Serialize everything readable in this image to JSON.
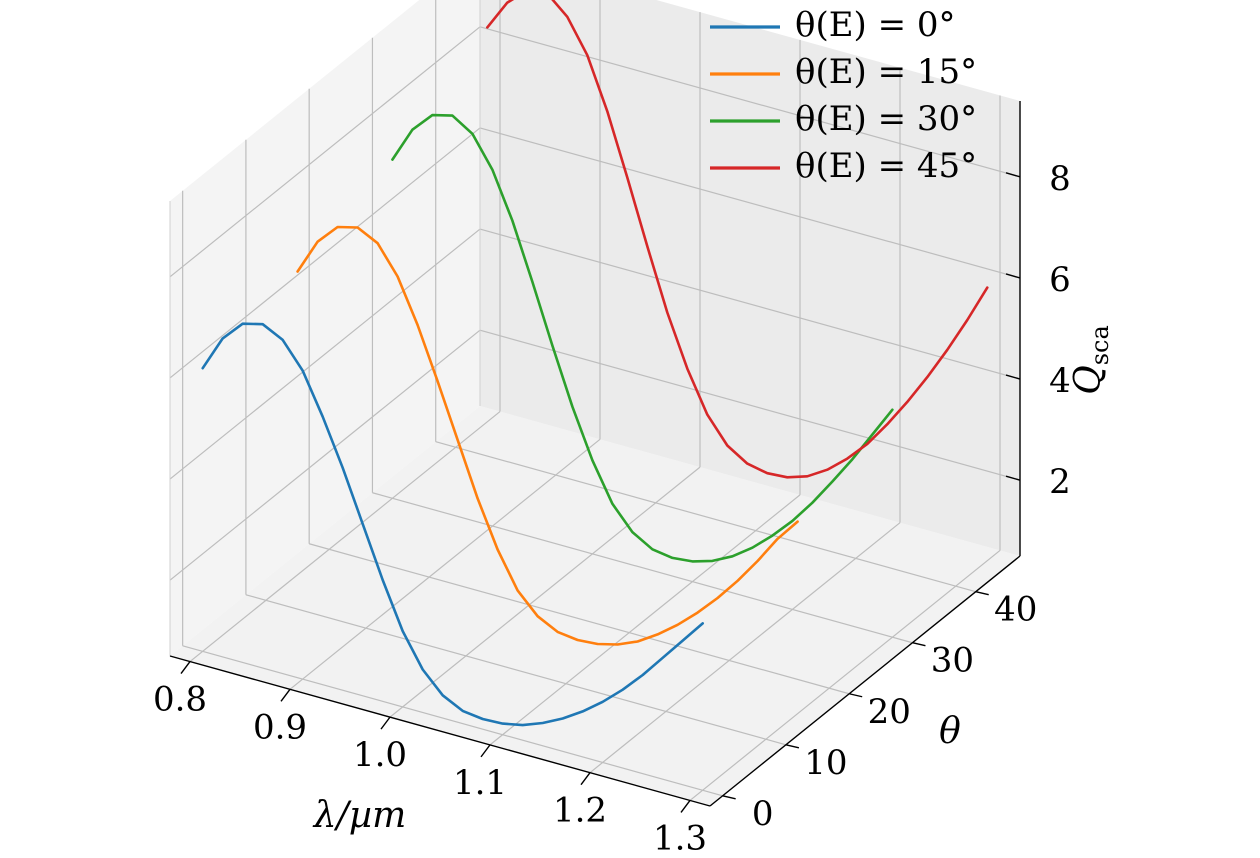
{
  "chart_data": {
    "type": "line",
    "projection": "3d",
    "x_axis": {
      "label": "λ/µm",
      "ticks": [
        "0.8",
        "0.9",
        "1.0",
        "1.1",
        "1.2",
        "1.3"
      ],
      "range": [
        0.78,
        1.32
      ]
    },
    "y_axis": {
      "label": "θ",
      "ticks": [
        "0",
        "10",
        "20",
        "30",
        "40"
      ],
      "range": [
        -2,
        47
      ]
    },
    "z_axis": {
      "label": "Q_sca",
      "ticks": [
        "2",
        "4",
        "6",
        "8"
      ],
      "range": [
        0.5,
        9.5
      ]
    },
    "grid": true,
    "legend_position": "top-right",
    "series": [
      {
        "name": "θ(E) = 0°",
        "theta": 0,
        "color": "#1f77b4",
        "x": [
          0.8,
          0.82,
          0.84,
          0.86,
          0.88,
          0.9,
          0.92,
          0.94,
          0.96,
          0.98,
          1.0,
          1.02,
          1.04,
          1.06,
          1.08,
          1.1,
          1.12,
          1.14,
          1.16,
          1.18,
          1.2,
          1.22,
          1.24,
          1.26,
          1.28,
          1.3
        ],
        "z": [
          6.1,
          6.8,
          7.2,
          7.3,
          7.1,
          6.6,
          5.8,
          4.9,
          3.9,
          2.9,
          2.0,
          1.35,
          0.95,
          0.75,
          0.7,
          0.72,
          0.8,
          0.95,
          1.15,
          1.4,
          1.7,
          2.05,
          2.45,
          2.9,
          3.35,
          3.8
        ]
      },
      {
        "name": "θ(E) = 15°",
        "theta": 15,
        "color": "#ff7f0e",
        "x": [
          0.8,
          0.82,
          0.84,
          0.86,
          0.88,
          0.9,
          0.92,
          0.94,
          0.96,
          0.98,
          1.0,
          1.02,
          1.04,
          1.06,
          1.08,
          1.1,
          1.12,
          1.14,
          1.16,
          1.18,
          1.2,
          1.22,
          1.24,
          1.26,
          1.28,
          1.3
        ],
        "z": [
          6.5,
          7.2,
          7.6,
          7.7,
          7.5,
          6.95,
          6.1,
          5.1,
          4.05,
          3.0,
          2.1,
          1.4,
          1.0,
          0.8,
          0.75,
          0.78,
          0.88,
          1.05,
          1.3,
          1.6,
          1.95,
          2.35,
          2.8,
          3.3,
          3.85,
          4.3
        ]
      },
      {
        "name": "θ(E) = 30°",
        "theta": 30,
        "color": "#2ca02c",
        "x": [
          0.8,
          0.82,
          0.84,
          0.86,
          0.88,
          0.9,
          0.92,
          0.94,
          0.96,
          0.98,
          1.0,
          1.02,
          1.04,
          1.06,
          1.08,
          1.1,
          1.12,
          1.14,
          1.16,
          1.18,
          1.2,
          1.22,
          1.24,
          1.26,
          1.28,
          1.3
        ],
        "z": [
          7.2,
          7.9,
          8.3,
          8.4,
          8.15,
          7.55,
          6.65,
          5.55,
          4.4,
          3.3,
          2.35,
          1.6,
          1.15,
          0.92,
          0.86,
          0.9,
          1.02,
          1.22,
          1.5,
          1.85,
          2.25,
          2.72,
          3.25,
          3.8,
          4.4,
          5.0
        ]
      },
      {
        "name": "θ(E) = 45°",
        "theta": 45,
        "color": "#d62728",
        "x": [
          0.8,
          0.82,
          0.84,
          0.86,
          0.88,
          0.9,
          0.92,
          0.94,
          0.96,
          0.98,
          1.0,
          1.02,
          1.04,
          1.06,
          1.08,
          1.1,
          1.12,
          1.14,
          1.16,
          1.18,
          1.2,
          1.22,
          1.24,
          1.26,
          1.28,
          1.3
        ],
        "z": [
          8.3,
          8.9,
          9.25,
          9.3,
          8.95,
          8.3,
          7.3,
          6.1,
          4.85,
          3.65,
          2.65,
          1.85,
          1.35,
          1.1,
          1.02,
          1.05,
          1.18,
          1.42,
          1.75,
          2.15,
          2.65,
          3.2,
          3.8,
          4.45,
          5.15,
          5.9
        ]
      }
    ]
  }
}
